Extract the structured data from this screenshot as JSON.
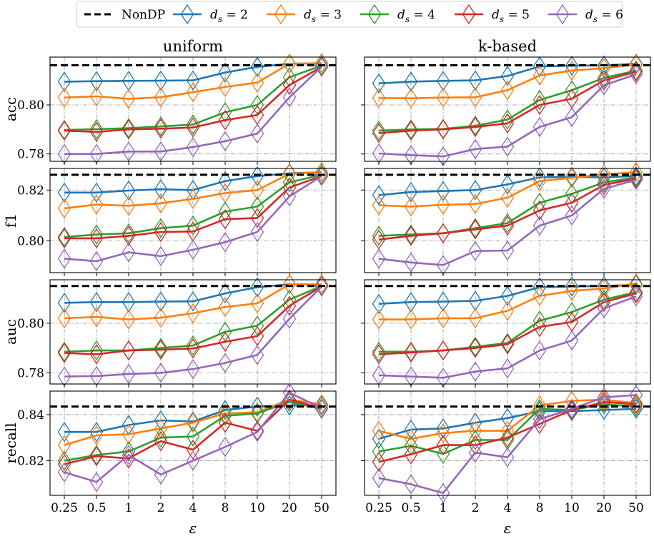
{
  "legend": [
    {
      "label": "NonDP",
      "style": "dashed",
      "color": "#000000"
    },
    {
      "label": "d_s = 2",
      "base": "d",
      "sub": "s",
      "rest": " = 2",
      "color": "#1f77b4"
    },
    {
      "label": "d_s = 3",
      "base": "d",
      "sub": "s",
      "rest": " = 3",
      "color": "#ff7f0e"
    },
    {
      "label": "d_s = 4",
      "base": "d",
      "sub": "s",
      "rest": " = 4",
      "color": "#2ca02c"
    },
    {
      "label": "d_s = 5",
      "base": "d",
      "sub": "s",
      "rest": " = 5",
      "color": "#d62728"
    },
    {
      "label": "d_s = 6",
      "base": "d",
      "sub": "s",
      "rest": " = 6",
      "color": "#9467bd"
    }
  ],
  "columns": [
    "uniform",
    "k-based"
  ],
  "rows": [
    "acc",
    "f1",
    "auc",
    "recall"
  ],
  "xlabel": "ε",
  "chart_data": {
    "type": "line",
    "categories": [
      "0.25",
      "0.5",
      "1",
      "2",
      "4",
      "8",
      "10",
      "20",
      "50"
    ],
    "xlabel": "ε",
    "legend_position": "top-center",
    "grid": true,
    "panels": [
      {
        "row": "acc",
        "column": "uniform",
        "ylim": [
          0.777,
          0.8195
        ],
        "yticks": [
          0.78,
          0.8
        ],
        "ytick_labels": [
          "0.78",
          "0.80"
        ],
        "nondp": 0.8162,
        "series": [
          {
            "name": "d_s = 2",
            "values": [
              0.8095,
              0.8097,
              0.8098,
              0.8099,
              0.81,
              0.8132,
              0.8155,
              0.8168,
              0.817
            ]
          },
          {
            "name": "d_s = 3",
            "values": [
              0.803,
              0.8035,
              0.8025,
              0.8031,
              0.8052,
              0.8073,
              0.8091,
              0.8168,
              0.817
            ]
          },
          {
            "name": "d_s = 4",
            "values": [
              0.7898,
              0.7901,
              0.7905,
              0.7912,
              0.792,
              0.797,
              0.8,
              0.8113,
              0.816
            ]
          },
          {
            "name": "d_s = 5",
            "values": [
              0.7895,
              0.789,
              0.79,
              0.7903,
              0.7908,
              0.7938,
              0.7959,
              0.8081,
              0.8155
            ]
          },
          {
            "name": "d_s = 6",
            "values": [
              0.78,
              0.78,
              0.781,
              0.781,
              0.7828,
              0.7852,
              0.7883,
              0.8031,
              0.8155
            ]
          }
        ]
      },
      {
        "row": "acc",
        "column": "k-based",
        "ylim": [
          0.777,
          0.8195
        ],
        "yticks": [
          0.78,
          0.8
        ],
        "ytick_labels": [
          "",
          ""
        ],
        "nondp": 0.8162,
        "series": [
          {
            "name": "d_s = 2",
            "values": [
              0.8088,
              0.8095,
              0.8098,
              0.81,
              0.8118,
              0.8157,
              0.816,
              0.8161,
              0.8168
            ]
          },
          {
            "name": "d_s = 3",
            "values": [
              0.8028,
              0.8027,
              0.803,
              0.8031,
              0.806,
              0.812,
              0.814,
              0.815,
              0.8165
            ]
          },
          {
            "name": "d_s = 4",
            "values": [
              0.7895,
              0.79,
              0.7902,
              0.7915,
              0.794,
              0.802,
              0.806,
              0.811,
              0.814
            ]
          },
          {
            "name": "d_s = 5",
            "values": [
              0.7885,
              0.7895,
              0.79,
              0.791,
              0.7925,
              0.8,
              0.8025,
              0.81,
              0.8135
            ]
          },
          {
            "name": "d_s = 6",
            "values": [
              0.7802,
              0.7795,
              0.779,
              0.782,
              0.783,
              0.791,
              0.795,
              0.808,
              0.8125
            ]
          }
        ]
      },
      {
        "row": "f1",
        "column": "uniform",
        "ylim": [
          0.7875,
          0.8285
        ],
        "yticks": [
          0.8,
          0.82
        ],
        "ytick_labels": [
          "0.80",
          "0.82"
        ],
        "nondp": 0.826,
        "series": [
          {
            "name": "d_s = 2",
            "values": [
              0.819,
              0.819,
              0.8198,
              0.8203,
              0.82,
              0.8235,
              0.8255,
              0.8266,
              0.827
            ]
          },
          {
            "name": "d_s = 3",
            "values": [
              0.8128,
              0.8143,
              0.8138,
              0.8148,
              0.8165,
              0.8188,
              0.82,
              0.8264,
              0.827
            ]
          },
          {
            "name": "d_s = 4",
            "values": [
              0.8015,
              0.8025,
              0.803,
              0.805,
              0.806,
              0.8115,
              0.8135,
              0.823,
              0.826
            ]
          },
          {
            "name": "d_s = 5",
            "values": [
              0.801,
              0.801,
              0.802,
              0.8035,
              0.8037,
              0.8085,
              0.809,
              0.821,
              0.8255
            ]
          },
          {
            "name": "d_s = 6",
            "values": [
              0.793,
              0.792,
              0.7955,
              0.794,
              0.7965,
              0.7995,
              0.8035,
              0.8175,
              0.8255
            ]
          }
        ]
      },
      {
        "row": "f1",
        "column": "k-based",
        "ylim": [
          0.7875,
          0.8285
        ],
        "yticks": [
          0.8,
          0.82
        ],
        "ytick_labels": [
          "",
          ""
        ],
        "nondp": 0.826,
        "series": [
          {
            "name": "d_s = 2",
            "values": [
              0.818,
              0.8192,
              0.8196,
              0.82,
              0.8222,
              0.825,
              0.8252,
              0.825,
              0.8255
            ]
          },
          {
            "name": "d_s = 3",
            "values": [
              0.814,
              0.8135,
              0.8142,
              0.8145,
              0.817,
              0.8235,
              0.8248,
              0.8262,
              0.827
            ]
          },
          {
            "name": "d_s = 4",
            "values": [
              0.802,
              0.8025,
              0.803,
              0.805,
              0.807,
              0.815,
              0.8185,
              0.823,
              0.825
            ]
          },
          {
            "name": "d_s = 5",
            "values": [
              0.8005,
              0.802,
              0.803,
              0.8045,
              0.806,
              0.812,
              0.815,
              0.822,
              0.8245
            ]
          },
          {
            "name": "d_s = 6",
            "values": [
              0.793,
              0.7915,
              0.7905,
              0.796,
              0.7962,
              0.806,
              0.81,
              0.8205,
              0.824
            ]
          }
        ]
      },
      {
        "row": "auc",
        "column": "uniform",
        "ylim": [
          0.7755,
          0.8175
        ],
        "yticks": [
          0.78,
          0.8
        ],
        "ytick_labels": [
          "0.78",
          "0.80"
        ],
        "nondp": 0.815,
        "series": [
          {
            "name": "d_s = 2",
            "values": [
              0.8082,
              0.8085,
              0.8085,
              0.8087,
              0.8088,
              0.812,
              0.8145,
              0.8157,
              0.8155
            ]
          },
          {
            "name": "d_s = 3",
            "values": [
              0.802,
              0.8025,
              0.8015,
              0.8022,
              0.804,
              0.8065,
              0.808,
              0.8157,
              0.8157
            ]
          },
          {
            "name": "d_s = 4",
            "values": [
              0.7885,
              0.789,
              0.789,
              0.79,
              0.791,
              0.7965,
              0.799,
              0.8095,
              0.815
            ]
          },
          {
            "name": "d_s = 5",
            "values": [
              0.788,
              0.7875,
              0.789,
              0.7893,
              0.7898,
              0.7925,
              0.7948,
              0.807,
              0.8148
            ]
          },
          {
            "name": "d_s = 6",
            "values": [
              0.7785,
              0.7787,
              0.7795,
              0.78,
              0.7815,
              0.784,
              0.7872,
              0.8018,
              0.8148
            ]
          }
        ]
      },
      {
        "row": "auc",
        "column": "k-based",
        "ylim": [
          0.7755,
          0.8175
        ],
        "yticks": [
          0.78,
          0.8
        ],
        "ytick_labels": [
          "",
          ""
        ],
        "nondp": 0.815,
        "series": [
          {
            "name": "d_s = 2",
            "values": [
              0.8078,
              0.8085,
              0.8087,
              0.809,
              0.811,
              0.8145,
              0.8148,
              0.815,
              0.8155
            ]
          },
          {
            "name": "d_s = 3",
            "values": [
              0.8015,
              0.8015,
              0.802,
              0.802,
              0.805,
              0.811,
              0.813,
              0.814,
              0.816
            ]
          },
          {
            "name": "d_s = 4",
            "values": [
              0.7885,
              0.7885,
              0.789,
              0.7905,
              0.792,
              0.801,
              0.8045,
              0.8095,
              0.8125
            ]
          },
          {
            "name": "d_s = 5",
            "values": [
              0.7875,
              0.7882,
              0.789,
              0.79,
              0.7915,
              0.7985,
              0.8005,
              0.8085,
              0.812
            ]
          },
          {
            "name": "d_s = 6",
            "values": [
              0.779,
              0.7785,
              0.778,
              0.7805,
              0.7818,
              0.789,
              0.793,
              0.806,
              0.8108
            ]
          }
        ]
      },
      {
        "row": "recall",
        "column": "uniform",
        "ylim": [
          0.805,
          0.8502
        ],
        "yticks": [
          0.82,
          0.84
        ],
        "ytick_labels": [
          "0.82",
          "0.84"
        ],
        "nondp": 0.8435,
        "series": [
          {
            "name": "d_s = 2",
            "values": [
              0.8325,
              0.8325,
              0.8355,
              0.8375,
              0.837,
              0.842,
              0.8435,
              0.844,
              0.844
            ]
          },
          {
            "name": "d_s = 3",
            "values": [
              0.8268,
              0.831,
              0.8315,
              0.834,
              0.8365,
              0.8405,
              0.841,
              0.8465,
              0.8445
            ]
          },
          {
            "name": "d_s = 4",
            "values": [
              0.82,
              0.8225,
              0.824,
              0.83,
              0.8305,
              0.8395,
              0.8405,
              0.8455,
              0.8425
            ]
          },
          {
            "name": "d_s = 5",
            "values": [
              0.8185,
              0.822,
              0.821,
              0.8285,
              0.8248,
              0.8365,
              0.833,
              0.8465,
              0.8428
            ]
          },
          {
            "name": "d_s = 6",
            "values": [
              0.815,
              0.8108,
              0.8225,
              0.814,
              0.82,
              0.826,
              0.8325,
              0.8495,
              0.8428
            ]
          }
        ]
      },
      {
        "row": "recall",
        "column": "k-based",
        "ylim": [
          0.805,
          0.8502
        ],
        "yticks": [
          0.82,
          0.84
        ],
        "ytick_labels": [
          "",
          ""
        ],
        "nondp": 0.8435,
        "series": [
          {
            "name": "d_s = 2",
            "values": [
              0.8295,
              0.8335,
              0.834,
              0.8365,
              0.8385,
              0.8415,
              0.8415,
              0.842,
              0.8425
            ]
          },
          {
            "name": "d_s = 3",
            "values": [
              0.833,
              0.8295,
              0.832,
              0.833,
              0.833,
              0.844,
              0.846,
              0.8465,
              0.845
            ]
          },
          {
            "name": "d_s = 4",
            "values": [
              0.824,
              0.8265,
              0.823,
              0.829,
              0.829,
              0.8425,
              0.842,
              0.8445,
              0.8435
            ]
          },
          {
            "name": "d_s = 5",
            "values": [
              0.8195,
              0.8228,
              0.8268,
              0.8268,
              0.83,
              0.836,
              0.842,
              0.8455,
              0.8445
            ]
          },
          {
            "name": "d_s = 6",
            "values": [
              0.8125,
              0.8098,
              0.806,
              0.8235,
              0.8215,
              0.838,
              0.8425,
              0.8475,
              0.8485
            ]
          }
        ]
      }
    ]
  }
}
